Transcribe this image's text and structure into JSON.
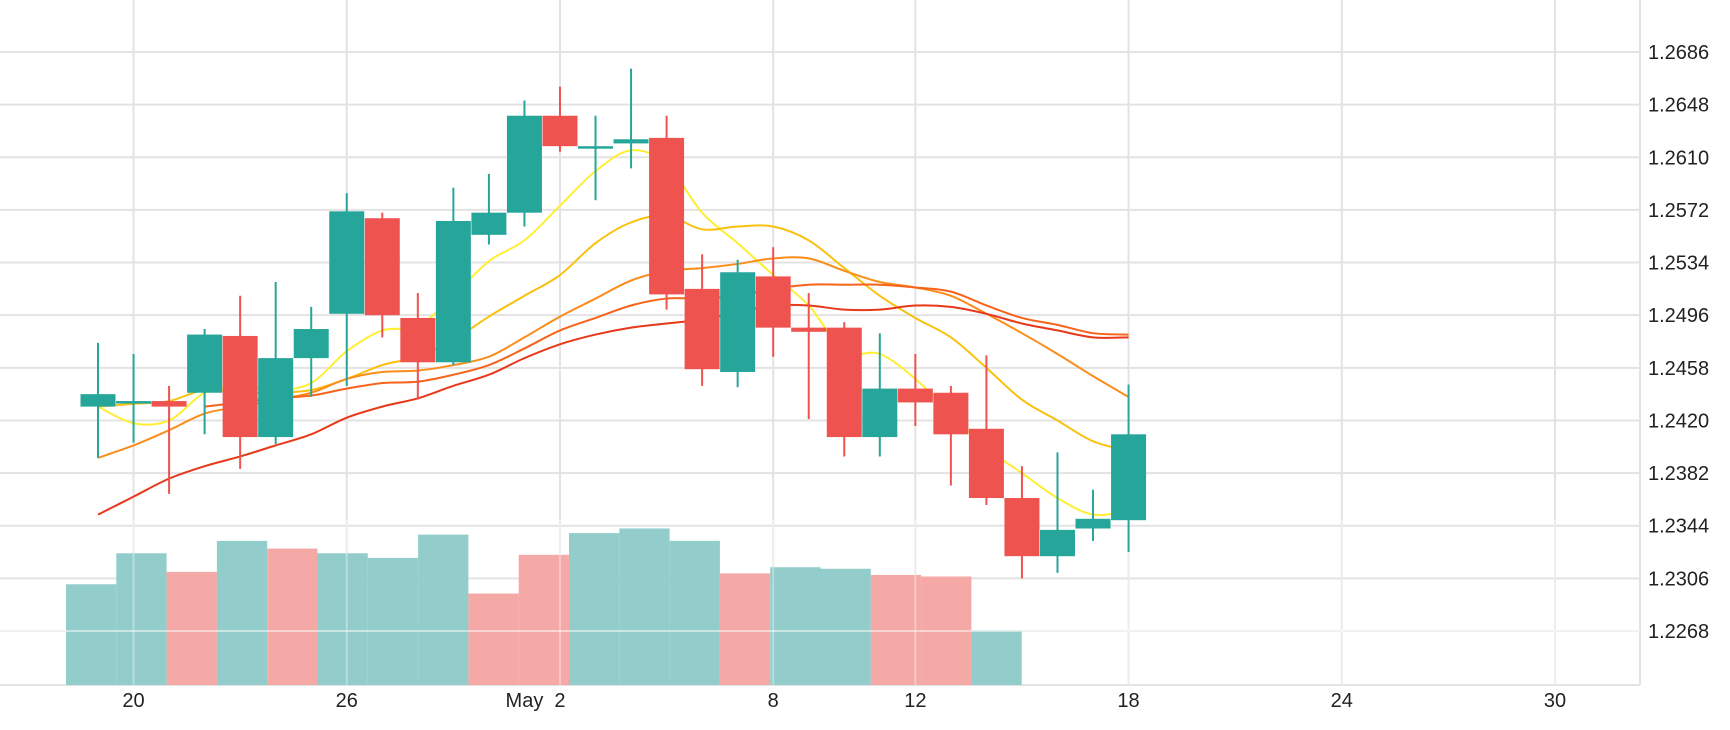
{
  "chart_data": {
    "type": "candlestick",
    "title": "",
    "xlabel": "",
    "ylabel": "",
    "ylim": [
      1.223,
      1.272
    ],
    "y_ticks": [
      1.2686,
      1.2648,
      1.261,
      1.2572,
      1.2534,
      1.2496,
      1.2458,
      1.242,
      1.2382,
      1.2344,
      1.2306,
      1.2268
    ],
    "y_tick_labels": [
      "1.2686",
      "1.2648",
      "1.2610",
      "1.2572",
      "1.2534",
      "1.2496",
      "1.2458",
      "1.2420",
      "1.2382",
      "1.2344",
      "1.2306",
      "1.2268"
    ],
    "x_ticks": [
      {
        "date": "2021-04-20",
        "label": "20"
      },
      {
        "date": "2021-04-26",
        "label": "26"
      },
      {
        "date": "2021-05-01",
        "label": "May"
      },
      {
        "date": "2021-05-02",
        "label": "2"
      },
      {
        "date": "2021-05-08",
        "label": "8"
      },
      {
        "date": "2021-05-12",
        "label": "12"
      },
      {
        "date": "2021-05-18",
        "label": "18"
      },
      {
        "date": "2021-05-24",
        "label": "24"
      },
      {
        "date": "2021-05-30",
        "label": "30"
      }
    ],
    "x_range": [
      "2021-04-18",
      "2021-05-31"
    ],
    "grid": true,
    "colors": {
      "up": "#26a69a",
      "down": "#ef5350",
      "volume_up": "#92cdcb",
      "volume_down": "#f4a9a6",
      "grid": "#e3e3e3"
    },
    "candles": [
      {
        "date": "2021-04-19",
        "open": 1.243,
        "high": 1.2476,
        "low": 1.2393,
        "close": 1.2439
      },
      {
        "date": "2021-04-20",
        "open": 1.2434,
        "high": 1.2468,
        "low": 1.2404,
        "close": 1.2434
      },
      {
        "date": "2021-04-21",
        "open": 1.2434,
        "high": 1.2445,
        "low": 1.2367,
        "close": 1.243
      },
      {
        "date": "2021-04-22",
        "open": 1.244,
        "high": 1.2486,
        "low": 1.241,
        "close": 1.2482
      },
      {
        "date": "2021-04-23",
        "open": 1.2481,
        "high": 1.251,
        "low": 1.2385,
        "close": 1.2408
      },
      {
        "date": "2021-04-24",
        "open": 1.2408,
        "high": 1.252,
        "low": 1.2403,
        "close": 1.2465
      },
      {
        "date": "2021-04-25",
        "open": 1.2465,
        "high": 1.2502,
        "low": 1.2437,
        "close": 1.2486
      },
      {
        "date": "2021-04-26",
        "open": 1.2497,
        "high": 1.2584,
        "low": 1.2445,
        "close": 1.2571
      },
      {
        "date": "2021-04-27",
        "open": 1.2566,
        "high": 1.257,
        "low": 1.248,
        "close": 1.2496
      },
      {
        "date": "2021-04-28",
        "open": 1.2494,
        "high": 1.2512,
        "low": 1.2435,
        "close": 1.2462
      },
      {
        "date": "2021-04-29",
        "open": 1.2462,
        "high": 1.2588,
        "low": 1.246,
        "close": 1.2564
      },
      {
        "date": "2021-04-30",
        "open": 1.2554,
        "high": 1.2598,
        "low": 1.2547,
        "close": 1.257
      },
      {
        "date": "2021-05-01",
        "open": 1.257,
        "high": 1.2651,
        "low": 1.256,
        "close": 1.264
      },
      {
        "date": "2021-05-02",
        "open": 1.264,
        "high": 1.2661,
        "low": 1.2614,
        "close": 1.2618
      },
      {
        "date": "2021-05-03",
        "open": 1.2618,
        "high": 1.264,
        "low": 1.2579,
        "close": 1.2618
      },
      {
        "date": "2021-05-04",
        "open": 1.262,
        "high": 1.2674,
        "low": 1.2602,
        "close": 1.2623
      },
      {
        "date": "2021-05-05",
        "open": 1.2624,
        "high": 1.264,
        "low": 1.25,
        "close": 1.2511
      },
      {
        "date": "2021-05-06",
        "open": 1.2515,
        "high": 1.254,
        "low": 1.2445,
        "close": 1.2457
      },
      {
        "date": "2021-05-07",
        "open": 1.2455,
        "high": 1.2536,
        "low": 1.2444,
        "close": 1.2527
      },
      {
        "date": "2021-05-08",
        "open": 1.2524,
        "high": 1.2545,
        "low": 1.2466,
        "close": 1.2487
      },
      {
        "date": "2021-05-09",
        "open": 1.2487,
        "high": 1.2512,
        "low": 1.2421,
        "close": 1.2484
      },
      {
        "date": "2021-05-10",
        "open": 1.2487,
        "high": 1.2491,
        "low": 1.2394,
        "close": 1.2408
      },
      {
        "date": "2021-05-11",
        "open": 1.2408,
        "high": 1.2483,
        "low": 1.2394,
        "close": 1.2443
      },
      {
        "date": "2021-05-12",
        "open": 1.2443,
        "high": 1.2468,
        "low": 1.2416,
        "close": 1.2433
      },
      {
        "date": "2021-05-13",
        "open": 1.244,
        "high": 1.2445,
        "low": 1.2373,
        "close": 1.241
      },
      {
        "date": "2021-05-14",
        "open": 1.2414,
        "high": 1.2467,
        "low": 1.2359,
        "close": 1.2364
      },
      {
        "date": "2021-05-15",
        "open": 1.2364,
        "high": 1.2387,
        "low": 1.2306,
        "close": 1.2322
      },
      {
        "date": "2021-05-16",
        "open": 1.2322,
        "high": 1.2397,
        "low": 1.231,
        "close": 1.2341
      },
      {
        "date": "2021-05-17",
        "open": 1.2342,
        "high": 1.237,
        "low": 1.2333,
        "close": 1.2349
      },
      {
        "date": "2021-05-18",
        "open": 1.2348,
        "high": 1.2446,
        "low": 1.2325,
        "close": 1.241
      }
    ],
    "volume": {
      "ylim": [
        0,
        100
      ],
      "bars": [
        {
          "start": "2021-04-18",
          "end": "2021-04-19",
          "value": 65,
          "direction": "up"
        },
        {
          "start": "2021-04-19",
          "end": "2021-04-20",
          "value": 85,
          "direction": "up"
        },
        {
          "start": "2021-04-20",
          "end": "2021-04-21",
          "value": 73,
          "direction": "down"
        },
        {
          "start": "2021-04-21",
          "end": "2021-04-22",
          "value": 93,
          "direction": "up"
        },
        {
          "start": "2021-04-22",
          "end": "2021-04-23",
          "value": 88,
          "direction": "down"
        },
        {
          "start": "2021-04-23",
          "end": "2021-04-24",
          "value": 85,
          "direction": "up"
        },
        {
          "start": "2021-04-24",
          "end": "2021-04-25",
          "value": 82,
          "direction": "up"
        },
        {
          "start": "2021-04-25",
          "end": "2021-04-26",
          "value": 97,
          "direction": "up"
        },
        {
          "start": "2021-04-26",
          "end": "2021-04-27",
          "value": 59,
          "direction": "down"
        },
        {
          "start": "2021-04-27",
          "end": "2021-04-28",
          "value": 84,
          "direction": "down"
        },
        {
          "start": "2021-04-28",
          "end": "2021-04-29",
          "value": 98,
          "direction": "up"
        },
        {
          "start": "2021-04-29",
          "end": "2021-04-30",
          "value": 101,
          "direction": "up"
        },
        {
          "start": "2021-04-30",
          "end": "2021-05-01",
          "value": 93,
          "direction": "up"
        },
        {
          "start": "2021-05-01",
          "end": "2021-05-02",
          "value": 72,
          "direction": "down"
        },
        {
          "start": "2021-05-02",
          "end": "2021-05-03",
          "value": 76,
          "direction": "up"
        },
        {
          "start": "2021-05-03",
          "end": "2021-05-04",
          "value": 75,
          "direction": "up"
        },
        {
          "start": "2021-05-04",
          "end": "2021-05-05",
          "value": 71,
          "direction": "down"
        },
        {
          "start": "2021-05-05",
          "end": "2021-05-06",
          "value": 70,
          "direction": "down"
        },
        {
          "start": "2021-05-06",
          "end": "2021-05-07",
          "value": 35,
          "direction": "up"
        }
      ]
    },
    "series": [
      {
        "color": "#ffee33",
        "values": [
          [
            "2021-04-19",
            1.243
          ],
          [
            "2021-04-20",
            1.2418
          ],
          [
            "2021-04-21",
            1.242
          ],
          [
            "2021-04-22",
            1.244
          ],
          [
            "2021-04-23",
            1.2445
          ],
          [
            "2021-04-24",
            1.2442
          ],
          [
            "2021-04-25",
            1.2447
          ],
          [
            "2021-04-26",
            1.247
          ],
          [
            "2021-04-27",
            1.2485
          ],
          [
            "2021-04-28",
            1.2488
          ],
          [
            "2021-04-29",
            1.251
          ],
          [
            "2021-04-30",
            1.2535
          ],
          [
            "2021-05-01",
            1.255
          ],
          [
            "2021-05-02",
            1.2575
          ],
          [
            "2021-05-03",
            1.26
          ],
          [
            "2021-05-04",
            1.2615
          ],
          [
            "2021-05-05",
            1.2605
          ],
          [
            "2021-05-06",
            1.257
          ],
          [
            "2021-05-07",
            1.2548
          ],
          [
            "2021-05-08",
            1.2525
          ],
          [
            "2021-05-09",
            1.2503
          ],
          [
            "2021-05-10",
            1.247
          ],
          [
            "2021-05-11",
            1.2468
          ],
          [
            "2021-05-12",
            1.245
          ],
          [
            "2021-05-13",
            1.2425
          ],
          [
            "2021-05-14",
            1.24
          ],
          [
            "2021-05-15",
            1.2382
          ],
          [
            "2021-05-16",
            1.2364
          ],
          [
            "2021-05-17",
            1.2352
          ],
          [
            "2021-05-18",
            1.2355
          ]
        ]
      },
      {
        "color": "#f9c10e",
        "values": [
          [
            "2021-04-19",
            1.243
          ],
          [
            "2021-04-20",
            1.2432
          ],
          [
            "2021-04-21",
            1.2434
          ],
          [
            "2021-04-22",
            1.2442
          ],
          [
            "2021-04-23",
            1.244
          ],
          [
            "2021-04-24",
            1.244
          ],
          [
            "2021-04-25",
            1.2442
          ],
          [
            "2021-04-26",
            1.245
          ],
          [
            "2021-04-27",
            1.246
          ],
          [
            "2021-04-28",
            1.2466
          ],
          [
            "2021-04-29",
            1.2478
          ],
          [
            "2021-04-30",
            1.2495
          ],
          [
            "2021-05-01",
            1.251
          ],
          [
            "2021-05-02",
            1.2525
          ],
          [
            "2021-05-03",
            1.2548
          ],
          [
            "2021-05-04",
            1.2563
          ],
          [
            "2021-05-05",
            1.2568
          ],
          [
            "2021-05-06",
            1.2558
          ],
          [
            "2021-05-07",
            1.256
          ],
          [
            "2021-05-08",
            1.256
          ],
          [
            "2021-05-09",
            1.255
          ],
          [
            "2021-05-10",
            1.253
          ],
          [
            "2021-05-11",
            1.251
          ],
          [
            "2021-05-12",
            1.2494
          ],
          [
            "2021-05-13",
            1.248
          ],
          [
            "2021-05-14",
            1.2458
          ],
          [
            "2021-05-15",
            1.2435
          ],
          [
            "2021-05-16",
            1.242
          ],
          [
            "2021-05-17",
            1.2405
          ],
          [
            "2021-05-18",
            1.2398
          ]
        ]
      },
      {
        "color": "#fb8c1a",
        "values": [
          [
            "2021-04-19",
            1.2393
          ],
          [
            "2021-04-20",
            1.2402
          ],
          [
            "2021-04-21",
            1.2413
          ],
          [
            "2021-04-22",
            1.2425
          ],
          [
            "2021-04-23",
            1.243
          ],
          [
            "2021-04-24",
            1.2435
          ],
          [
            "2021-04-25",
            1.244
          ],
          [
            "2021-04-26",
            1.245
          ],
          [
            "2021-04-27",
            1.2455
          ],
          [
            "2021-04-28",
            1.2456
          ],
          [
            "2021-04-29",
            1.246
          ],
          [
            "2021-04-30",
            1.2466
          ],
          [
            "2021-05-01",
            1.248
          ],
          [
            "2021-05-02",
            1.2495
          ],
          [
            "2021-05-03",
            1.2508
          ],
          [
            "2021-05-04",
            1.2521
          ],
          [
            "2021-05-05",
            1.2528
          ],
          [
            "2021-05-06",
            1.253
          ],
          [
            "2021-05-07",
            1.2533
          ],
          [
            "2021-05-08",
            1.2537
          ],
          [
            "2021-05-09",
            1.2537
          ],
          [
            "2021-05-10",
            1.2528
          ],
          [
            "2021-05-11",
            1.252
          ],
          [
            "2021-05-12",
            1.2516
          ],
          [
            "2021-05-13",
            1.251
          ],
          [
            "2021-05-14",
            1.2497
          ],
          [
            "2021-05-15",
            1.2483
          ],
          [
            "2021-05-16",
            1.2468
          ],
          [
            "2021-05-17",
            1.2452
          ],
          [
            "2021-05-18",
            1.2437
          ]
        ]
      },
      {
        "color": "#f7631b",
        "values": [
          [
            "2021-04-22",
            1.243
          ],
          [
            "2021-04-23",
            1.2433
          ],
          [
            "2021-04-24",
            1.2436
          ],
          [
            "2021-04-25",
            1.2438
          ],
          [
            "2021-04-26",
            1.2443
          ],
          [
            "2021-04-27",
            1.2447
          ],
          [
            "2021-04-28",
            1.2448
          ],
          [
            "2021-04-29",
            1.2453
          ],
          [
            "2021-04-30",
            1.246
          ],
          [
            "2021-05-01",
            1.2472
          ],
          [
            "2021-05-02",
            1.2485
          ],
          [
            "2021-05-03",
            1.2494
          ],
          [
            "2021-05-04",
            1.2503
          ],
          [
            "2021-05-05",
            1.2508
          ],
          [
            "2021-05-06",
            1.2508
          ],
          [
            "2021-05-07",
            1.251
          ],
          [
            "2021-05-08",
            1.2515
          ],
          [
            "2021-05-09",
            1.2518
          ],
          [
            "2021-05-10",
            1.2518
          ],
          [
            "2021-05-11",
            1.2518
          ],
          [
            "2021-05-12",
            1.2516
          ],
          [
            "2021-05-13",
            1.2513
          ],
          [
            "2021-05-14",
            1.2503
          ],
          [
            "2021-05-15",
            1.2494
          ],
          [
            "2021-05-16",
            1.2489
          ],
          [
            "2021-05-17",
            1.2483
          ],
          [
            "2021-05-18",
            1.2482
          ]
        ]
      },
      {
        "color": "#e8381a",
        "values": [
          [
            "2021-04-19",
            1.2352
          ],
          [
            "2021-04-20",
            1.2365
          ],
          [
            "2021-04-21",
            1.2378
          ],
          [
            "2021-04-22",
            1.2387
          ],
          [
            "2021-04-23",
            1.2394
          ],
          [
            "2021-04-24",
            1.2402
          ],
          [
            "2021-04-25",
            1.241
          ],
          [
            "2021-04-26",
            1.2422
          ],
          [
            "2021-04-27",
            1.243
          ],
          [
            "2021-04-28",
            1.2436
          ],
          [
            "2021-04-29",
            1.2445
          ],
          [
            "2021-04-30",
            1.2453
          ],
          [
            "2021-05-01",
            1.2465
          ],
          [
            "2021-05-02",
            1.2475
          ],
          [
            "2021-05-03",
            1.2482
          ],
          [
            "2021-05-04",
            1.2487
          ],
          [
            "2021-05-05",
            1.249
          ],
          [
            "2021-05-06",
            1.2493
          ],
          [
            "2021-05-07",
            1.2498
          ],
          [
            "2021-05-08",
            1.2503
          ],
          [
            "2021-05-09",
            1.2503
          ],
          [
            "2021-05-10",
            1.25
          ],
          [
            "2021-05-11",
            1.25
          ],
          [
            "2021-05-12",
            1.2503
          ],
          [
            "2021-05-13",
            1.2502
          ],
          [
            "2021-05-14",
            1.2497
          ],
          [
            "2021-05-15",
            1.249
          ],
          [
            "2021-05-16",
            1.2485
          ],
          [
            "2021-05-17",
            1.248
          ],
          [
            "2021-05-18",
            1.248
          ]
        ]
      }
    ]
  }
}
